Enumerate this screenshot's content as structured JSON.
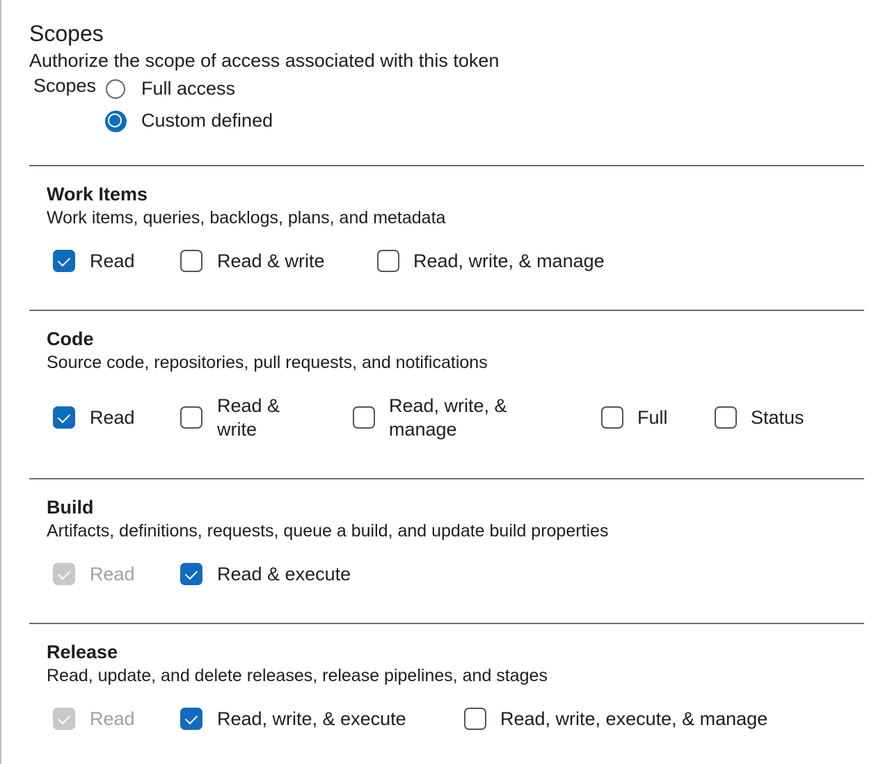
{
  "header": {
    "title": "Scopes",
    "subtitle": "Authorize the scope of access associated with this token",
    "scopes_label": "Scopes"
  },
  "scope_mode": {
    "options": [
      {
        "label": "Full access",
        "selected": false
      },
      {
        "label": "Custom defined",
        "selected": true
      }
    ]
  },
  "accent_color": "#0f6cbd",
  "sections": [
    {
      "title": "Work Items",
      "description": "Work items, queries, backlogs, plans, and metadata",
      "options": [
        {
          "label": "Read",
          "checked": true
        },
        {
          "label": "Read & write",
          "checked": false
        },
        {
          "label": "Read, write, & manage",
          "checked": false
        }
      ]
    },
    {
      "title": "Code",
      "description": "Source code, repositories, pull requests, and notifications",
      "options": [
        {
          "label": "Read",
          "checked": true
        },
        {
          "label": "Read & write",
          "checked": false
        },
        {
          "label": "Read, write, & manage",
          "checked": false
        },
        {
          "label": "Full",
          "checked": false
        },
        {
          "label": "Status",
          "checked": false
        }
      ]
    },
    {
      "title": "Build",
      "description": "Artifacts, definitions, requests, queue a build, and update build properties",
      "options": [
        {
          "label": "Read",
          "checked": true,
          "disabled": true
        },
        {
          "label": "Read & execute",
          "checked": true
        }
      ]
    },
    {
      "title": "Release",
      "description": "Read, update, and delete releases, release pipelines, and stages",
      "options": [
        {
          "label": "Read",
          "checked": true,
          "disabled": true
        },
        {
          "label": "Read, write, & execute",
          "checked": true
        },
        {
          "label": "Read, write, execute, & manage",
          "checked": false
        }
      ]
    }
  ]
}
